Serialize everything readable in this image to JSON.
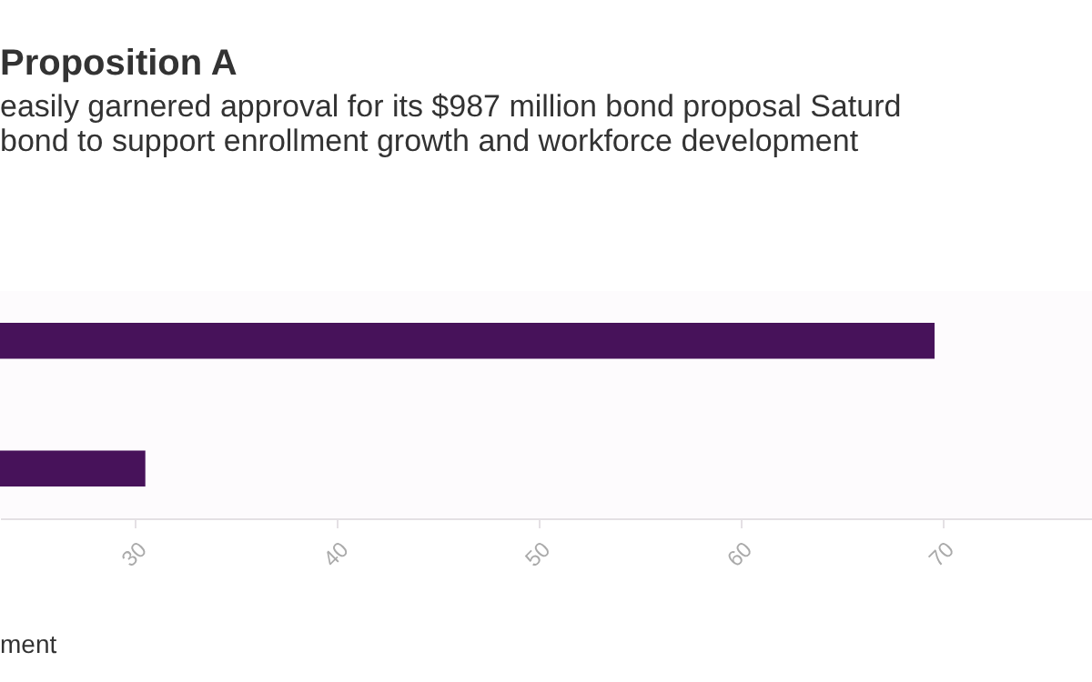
{
  "chart_data": {
    "type": "bar",
    "orientation": "horizontal",
    "title": "Proposition A",
    "subtitle": [
      "easily garnered approval for its $987 million bond proposal Saturd",
      "bond to support enrollment growth and workforce development"
    ],
    "categories": [
      null,
      null
    ],
    "values": [
      69.6,
      30.5
    ],
    "color": "#47125a",
    "xlim": [
      23.3,
      77.4
    ],
    "xticks": [
      30,
      40,
      50,
      60,
      70
    ],
    "grid": false,
    "annotations": [
      "ment"
    ]
  }
}
